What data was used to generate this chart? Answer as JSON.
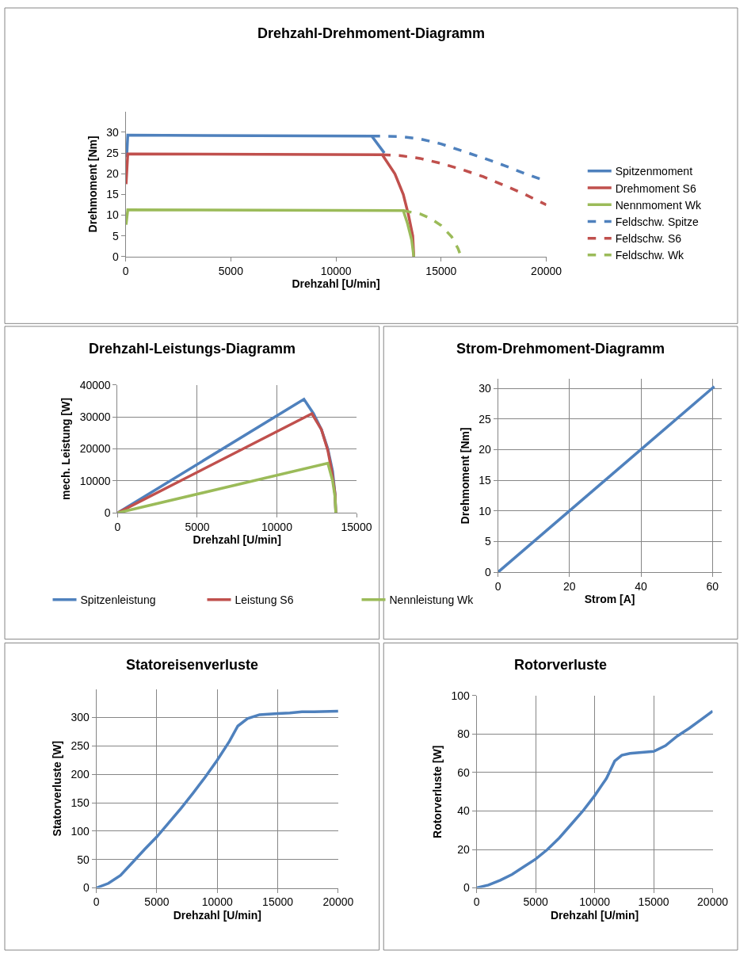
{
  "chart_data": [
    {
      "type": "line",
      "title": "Drehzahl-Drehmoment-Diagramm",
      "xlabel": "Drehzahl [U/min]",
      "ylabel": "Drehmoment [Nm]",
      "xlim": [
        0,
        20000
      ],
      "xticks": [
        0,
        5000,
        10000,
        15000,
        20000
      ],
      "ylim": [
        0,
        35
      ],
      "yticks": [
        0,
        5,
        10,
        15,
        20,
        25,
        30
      ],
      "grid": false,
      "legend": "right",
      "series": [
        {
          "name": "Spitzenmoment",
          "color": "#4f81bd",
          "line_style": "solid",
          "x": [
            50,
            100,
            11700,
            12300
          ],
          "values": [
            24,
            29.3,
            29.1,
            25
          ]
        },
        {
          "name": "Drehmoment S6",
          "color": "#c0504d",
          "line_style": "solid",
          "x": [
            20,
            100,
            12200,
            12800,
            13200,
            13450,
            13650,
            13700
          ],
          "values": [
            17.5,
            24.8,
            24.6,
            20,
            15,
            10,
            5,
            0
          ]
        },
        {
          "name": "Nennmoment Wk",
          "color": "#9bbb59",
          "line_style": "solid",
          "x": [
            20,
            100,
            13200,
            13400,
            13600,
            13700
          ],
          "values": [
            7.7,
            11.3,
            11.1,
            8,
            4,
            0
          ]
        },
        {
          "name": "Feldschw. Spitze",
          "color": "#4f81bd",
          "line_style": "dashed",
          "x": [
            11700,
            13000,
            14000,
            15000,
            16000,
            17000,
            18000,
            19000,
            20000
          ],
          "values": [
            29.1,
            29,
            28.4,
            27.2,
            25.5,
            23.8,
            22,
            20,
            18.2
          ]
        },
        {
          "name": "Feldschw. S6",
          "color": "#c0504d",
          "line_style": "dashed",
          "x": [
            12200,
            13000,
            14000,
            15000,
            16000,
            17000,
            18000,
            19000,
            20000
          ],
          "values": [
            24.6,
            24.4,
            23.7,
            22.5,
            21,
            19.3,
            17.2,
            15,
            12.5
          ]
        },
        {
          "name": "Feldschw. Wk",
          "color": "#9bbb59",
          "line_style": "dashed",
          "x": [
            13200,
            14000,
            14500,
            15000,
            15500,
            15800,
            15950
          ],
          "values": [
            11.1,
            10.3,
            9.2,
            7.5,
            4.8,
            2,
            0
          ]
        }
      ]
    },
    {
      "type": "line",
      "title": "Drehzahl-Leistungs-Diagramm",
      "xlabel": "Drehzahl [U/min]",
      "ylabel": "mech. Leistung [W]",
      "xlim": [
        0,
        15000
      ],
      "xticks": [
        0,
        5000,
        10000,
        15000
      ],
      "ylim": [
        0,
        40000
      ],
      "yticks": [
        0,
        10000,
        20000,
        30000,
        40000
      ],
      "grid": true,
      "legend": "bottom",
      "series": [
        {
          "name": "Spitzenleistung",
          "color": "#4f81bd",
          "line_style": "solid",
          "x": [
            0,
            11700,
            12300,
            12800,
            13200,
            13500,
            13650,
            13700
          ],
          "values": [
            0,
            35500,
            31000,
            26000,
            20000,
            13000,
            6000,
            0
          ]
        },
        {
          "name": "Leistung S6",
          "color": "#c0504d",
          "line_style": "solid",
          "x": [
            0,
            12200,
            12800,
            13200,
            13450,
            13650,
            13700
          ],
          "values": [
            0,
            31000,
            26000,
            19500,
            13000,
            6000,
            0
          ]
        },
        {
          "name": "Nennleistung Wk",
          "color": "#9bbb59",
          "line_style": "solid",
          "x": [
            0,
            13200,
            13500,
            13650,
            13700
          ],
          "values": [
            0,
            15500,
            10000,
            5000,
            0
          ]
        }
      ]
    },
    {
      "type": "line",
      "title": "Strom-Drehmoment-Diagramm",
      "xlabel": "Strom [A]",
      "ylabel": "Drehmoment [Nm]",
      "xlim": [
        0,
        62.5
      ],
      "xticks": [
        0,
        20,
        40,
        60
      ],
      "ylim": [
        0,
        31.5
      ],
      "yticks": [
        0,
        5,
        10,
        15,
        20,
        25,
        30
      ],
      "grid": true,
      "legend": false,
      "series": [
        {
          "color": "#4f81bd",
          "line_style": "solid",
          "x": [
            0,
            60.5
          ],
          "values": [
            0,
            30.3
          ]
        }
      ]
    },
    {
      "type": "line",
      "title": "Statoreisenverluste",
      "xlabel": "Drehzahl [U/min]",
      "ylabel": "Statorverluste [W]",
      "xlim": [
        0,
        20000
      ],
      "xticks": [
        0,
        5000,
        10000,
        15000,
        20000
      ],
      "ylim": [
        0,
        350
      ],
      "yticks": [
        0,
        50,
        100,
        150,
        200,
        250,
        300
      ],
      "grid": true,
      "legend": false,
      "series": [
        {
          "color": "#4f81bd",
          "line_style": "solid",
          "x": [
            0,
            1000,
            2000,
            3000,
            4000,
            5000,
            6000,
            7000,
            8000,
            9000,
            10000,
            11000,
            11700,
            12500,
            13500,
            15000,
            16000,
            17000,
            18000,
            20000
          ],
          "values": [
            0,
            8,
            22,
            45,
            68,
            90,
            115,
            140,
            167,
            195,
            225,
            258,
            285,
            298,
            305,
            307,
            308,
            310,
            310,
            311
          ]
        }
      ]
    },
    {
      "type": "line",
      "title": "Rotorverluste",
      "xlabel": "Drehzahl [U/min]",
      "ylabel": "Rotorverluste [W]",
      "xlim": [
        0,
        20000
      ],
      "xticks": [
        0,
        5000,
        10000,
        15000,
        20000
      ],
      "ylim": [
        0,
        100
      ],
      "yticks": [
        0,
        20,
        40,
        60,
        80,
        100
      ],
      "grid": true,
      "legend": false,
      "series": [
        {
          "color": "#4f81bd",
          "line_style": "solid",
          "x": [
            0,
            1000,
            2000,
            3000,
            4000,
            5000,
            6000,
            7000,
            8000,
            9000,
            10000,
            11000,
            11700,
            12300,
            13000,
            14000,
            15000,
            16000,
            17000,
            18000,
            19000,
            20000
          ],
          "values": [
            0,
            1.5,
            4,
            7,
            11,
            15,
            20,
            26,
            33,
            40,
            48,
            57,
            66,
            69,
            70,
            70.5,
            71,
            74,
            79,
            83,
            87.5,
            92
          ]
        }
      ]
    }
  ]
}
